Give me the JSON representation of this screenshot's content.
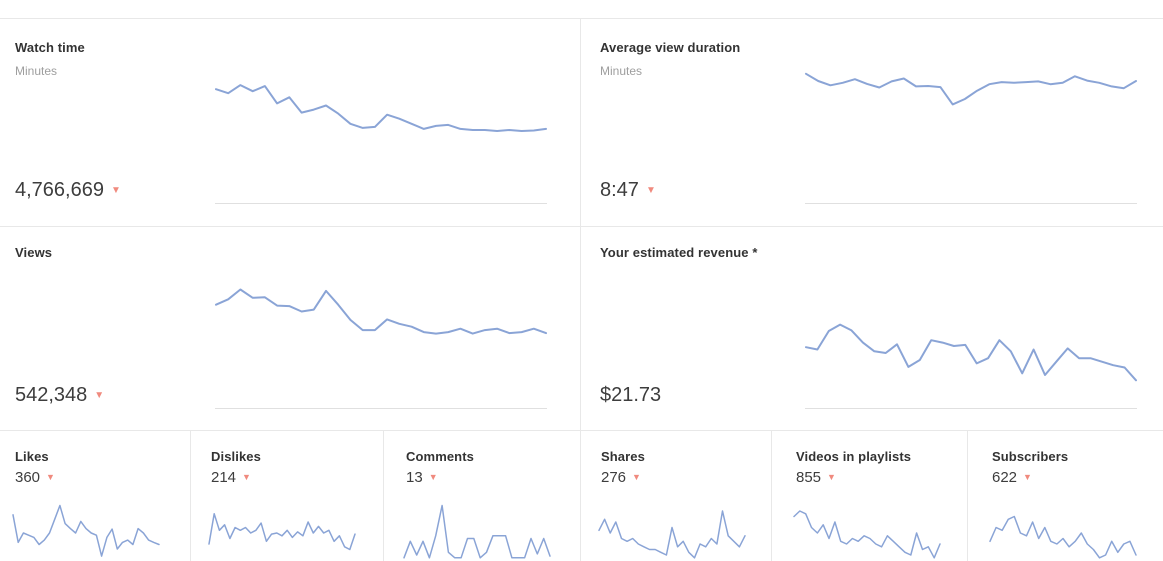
{
  "colors": {
    "sparkline": "#8aa4d6",
    "baseline": "#e0e0e0",
    "divider": "#e8e8e8",
    "trend_down": "#f08a7e",
    "title_text": "#333333",
    "subtitle_text": "#9e9e9e",
    "value_text": "#3d3d3d"
  },
  "cards": {
    "watch_time": {
      "title": "Watch time",
      "subtitle": "Minutes",
      "value": "4,766,669",
      "trend_icon": "▼"
    },
    "avg_view_duration": {
      "title": "Average view duration",
      "subtitle": "Minutes",
      "value": "8:47",
      "trend_icon": "▼"
    },
    "views": {
      "title": "Views",
      "value": "542,348",
      "trend_icon": "▼"
    },
    "revenue": {
      "title": "Your estimated revenue *",
      "value": "$21.73"
    }
  },
  "mini_cards": [
    {
      "title": "Likes",
      "value": "360",
      "trend_icon": "▼"
    },
    {
      "title": "Dislikes",
      "value": "214",
      "trend_icon": "▼"
    },
    {
      "title": "Comments",
      "value": "13",
      "trend_icon": "▼"
    },
    {
      "title": "Shares",
      "value": "276",
      "trend_icon": "▼"
    },
    {
      "title": "Videos in playlists",
      "value": "855",
      "trend_icon": "▼"
    },
    {
      "title": "Subscribers",
      "value": "622",
      "trend_icon": "▼"
    }
  ],
  "chart_note": "Sparklines have no visible axes or tick labels; values are relative line heights on a 0-100 scale (100 = top of each sparkline area), estimated from pixels over the unlabeled reporting period.",
  "chart_data": [
    {
      "id": "watch_time",
      "title": "Watch time (Minutes)",
      "type": "line",
      "ylim": [
        0,
        100
      ],
      "values": [
        84,
        76,
        92,
        80,
        90,
        56,
        68,
        38,
        44,
        52,
        36,
        16,
        8,
        10,
        34,
        26,
        16,
        6,
        12,
        14,
        6,
        4,
        4,
        2,
        4,
        2,
        3,
        6
      ]
    },
    {
      "id": "average_view_duration",
      "title": "Average view duration (Minutes)",
      "type": "line",
      "ylim": [
        0,
        100
      ],
      "values": [
        95,
        75,
        63,
        70,
        80,
        67,
        57,
        74,
        82,
        60,
        61,
        58,
        10,
        25,
        48,
        66,
        72,
        70,
        72,
        74,
        66,
        70,
        88,
        76,
        70,
        60,
        55,
        75
      ]
    },
    {
      "id": "views",
      "title": "Views",
      "type": "line",
      "ylim": [
        0,
        100
      ],
      "values": [
        66,
        77,
        97,
        80,
        81,
        64,
        63,
        52,
        56,
        94,
        66,
        35,
        14,
        14,
        36,
        27,
        21,
        10,
        7,
        10,
        17,
        7,
        14,
        17,
        8,
        10,
        17,
        8
      ]
    },
    {
      "id": "estimated_revenue",
      "title": "Your estimated revenue",
      "type": "line",
      "ylim": [
        0,
        100
      ],
      "values": [
        60,
        56,
        88,
        99,
        89,
        68,
        53,
        50,
        65,
        26,
        38,
        72,
        68,
        62,
        64,
        32,
        41,
        72,
        53,
        15,
        56,
        12,
        35,
        58,
        41,
        41,
        35,
        29,
        25,
        3
      ]
    },
    {
      "id": "likes",
      "title": "Likes",
      "type": "line",
      "ylim": [
        0,
        100
      ],
      "values": [
        83,
        33,
        50,
        46,
        42,
        29,
        37,
        50,
        75,
        100,
        67,
        58,
        50,
        71,
        58,
        50,
        46,
        8,
        42,
        57,
        21,
        33,
        37,
        29,
        58,
        50,
        37,
        33,
        29
      ]
    },
    {
      "id": "dislikes",
      "title": "Dislikes",
      "type": "line",
      "ylim": [
        0,
        100
      ],
      "values": [
        30,
        85,
        55,
        65,
        40,
        60,
        55,
        60,
        50,
        55,
        68,
        35,
        48,
        50,
        45,
        55,
        42,
        52,
        45,
        70,
        50,
        62,
        50,
        55,
        35,
        45,
        25,
        20,
        48
      ]
    },
    {
      "id": "comments",
      "title": "Comments",
      "type": "line",
      "ylim": [
        0,
        100
      ],
      "values": [
        5,
        35,
        10,
        35,
        5,
        45,
        100,
        15,
        5,
        5,
        40,
        40,
        5,
        15,
        45,
        45,
        45,
        5,
        5,
        5,
        40,
        12,
        40,
        8
      ]
    },
    {
      "id": "shares",
      "title": "Shares",
      "type": "line",
      "ylim": [
        0,
        100
      ],
      "values": [
        55,
        75,
        50,
        70,
        40,
        35,
        40,
        30,
        25,
        20,
        20,
        15,
        10,
        60,
        25,
        35,
        15,
        5,
        30,
        25,
        40,
        30,
        90,
        45,
        35,
        25,
        45
      ]
    },
    {
      "id": "videos_in_playlists",
      "title": "Videos in playlists",
      "type": "line",
      "ylim": [
        0,
        100
      ],
      "values": [
        80,
        90,
        85,
        60,
        50,
        65,
        40,
        70,
        35,
        30,
        40,
        35,
        45,
        40,
        30,
        25,
        45,
        35,
        25,
        15,
        10,
        50,
        20,
        25,
        5,
        30
      ]
    },
    {
      "id": "subscribers",
      "title": "Subscribers",
      "type": "line",
      "ylim": [
        0,
        100
      ],
      "values": [
        35,
        60,
        55,
        75,
        80,
        50,
        45,
        70,
        40,
        60,
        35,
        30,
        40,
        25,
        35,
        50,
        30,
        20,
        5,
        10,
        35,
        15,
        30,
        35,
        10
      ]
    }
  ]
}
